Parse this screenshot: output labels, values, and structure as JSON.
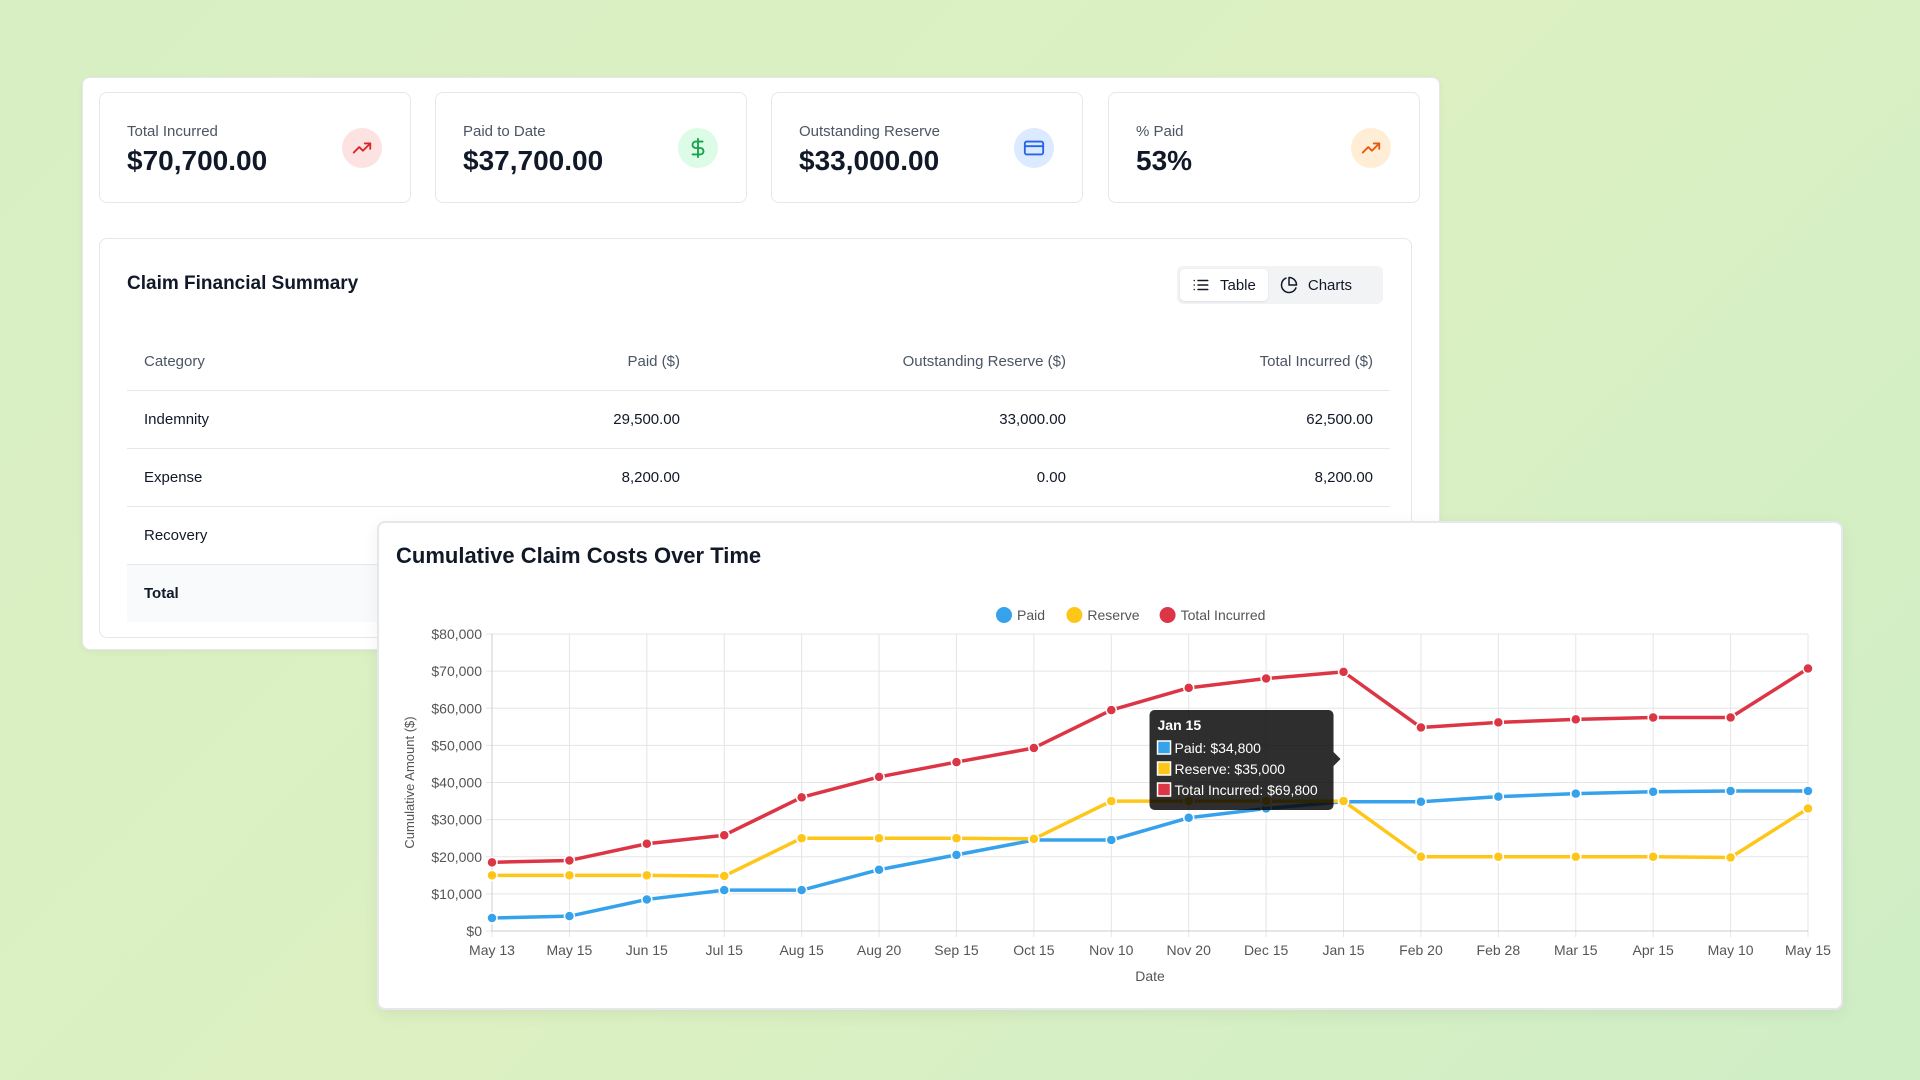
{
  "kpis": [
    {
      "label": "Total Incurred",
      "value": "$70,700.00",
      "icon": "trending-up-icon",
      "icon_color": "#dc2626",
      "icon_bg": "#fde2e2"
    },
    {
      "label": "Paid to Date",
      "value": "$37,700.00",
      "icon": "dollar-icon",
      "icon_color": "#16a34a",
      "icon_bg": "#dcfce7"
    },
    {
      "label": "Outstanding Reserve",
      "value": "$33,000.00",
      "icon": "credit-card-icon",
      "icon_color": "#2563eb",
      "icon_bg": "#dbeafe"
    },
    {
      "label": "% Paid",
      "value": "53%",
      "icon": "trending-up-icon",
      "icon_color": "#ea580c",
      "icon_bg": "#ffedd5"
    }
  ],
  "summary": {
    "title": "Claim Financial Summary",
    "toggle": {
      "table_label": "Table",
      "charts_label": "Charts",
      "active": "Table"
    },
    "columns": [
      "Category",
      "Paid ($)",
      "Outstanding Reserve ($)",
      "Total Incurred ($)"
    ],
    "rows": [
      [
        "Indemnity",
        "29,500.00",
        "33,000.00",
        "62,500.00"
      ],
      [
        "Expense",
        "8,200.00",
        "0.00",
        "8,200.00"
      ],
      [
        "Recovery",
        "",
        "",
        ""
      ],
      [
        "Total",
        "",
        "",
        ""
      ]
    ]
  },
  "chart_data": {
    "type": "line",
    "title": "Cumulative Claim Costs Over Time",
    "xlabel": "Date",
    "ylabel": "Cumulative Amount ($)",
    "ylim": [
      0,
      80000
    ],
    "yticks": [
      "$0",
      "$10,000",
      "$20,000",
      "$30,000",
      "$40,000",
      "$50,000",
      "$60,000",
      "$70,000",
      "$80,000"
    ],
    "grid": true,
    "legend_position": "top-center",
    "categories": [
      "May 13",
      "May 15",
      "Jun 15",
      "Jul 15",
      "Aug 15",
      "Aug 20",
      "Sep 15",
      "Oct 15",
      "Nov 10",
      "Nov 20",
      "Dec 15",
      "Jan 15",
      "Feb 20",
      "Feb 28",
      "Mar 15",
      "Apr 15",
      "May 10",
      "May 15"
    ],
    "series": [
      {
        "name": "Paid",
        "color": "#36a2eb",
        "values": [
          3500,
          4000,
          8500,
          11000,
          11000,
          16500,
          20500,
          24500,
          24500,
          30500,
          33000,
          34800,
          34800,
          36200,
          37000,
          37500,
          37700,
          37700
        ]
      },
      {
        "name": "Reserve",
        "color": "#ffc61a",
        "values": [
          15000,
          15000,
          15000,
          14800,
          25000,
          25000,
          25000,
          24800,
          35000,
          35000,
          35000,
          35000,
          20000,
          20000,
          20000,
          20000,
          19800,
          33000
        ]
      },
      {
        "name": "Total Incurred",
        "color": "#dc3545",
        "values": [
          18500,
          19000,
          23500,
          25800,
          36000,
          41500,
          45500,
          49300,
          59500,
          65500,
          68000,
          69800,
          54800,
          56200,
          57000,
          57500,
          57500,
          70700
        ]
      }
    ],
    "tooltip": {
      "title": "Jan 15",
      "lines": [
        "Paid: $34,800",
        "Reserve: $35,000",
        "Total Incurred: $69,800"
      ]
    }
  }
}
